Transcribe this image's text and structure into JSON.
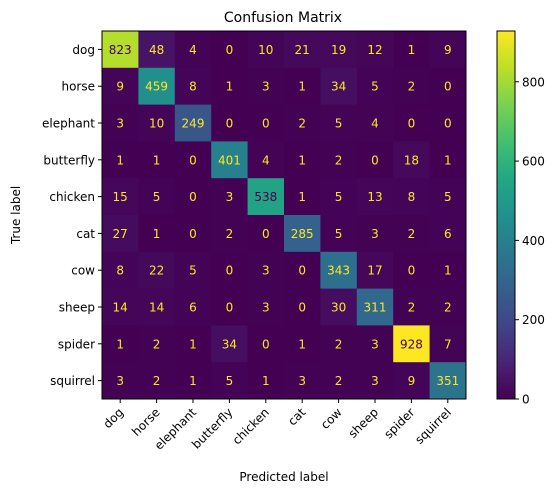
{
  "chart_data": {
    "type": "heatmap",
    "title": "Confusion Matrix",
    "xlabel": "Predicted label",
    "ylabel": "True label",
    "x_categories": [
      "dog",
      "horse",
      "elephant",
      "butterfly",
      "chicken",
      "cat",
      "cow",
      "sheep",
      "spider",
      "squirrel"
    ],
    "y_categories": [
      "dog",
      "horse",
      "elephant",
      "butterfly",
      "chicken",
      "cat",
      "cow",
      "sheep",
      "spider",
      "squirrel"
    ],
    "values": [
      [
        823,
        48,
        4,
        0,
        10,
        21,
        19,
        12,
        1,
        9
      ],
      [
        9,
        459,
        8,
        1,
        3,
        1,
        34,
        5,
        2,
        0
      ],
      [
        3,
        10,
        249,
        0,
        0,
        2,
        5,
        4,
        0,
        0
      ],
      [
        1,
        1,
        0,
        401,
        4,
        1,
        2,
        0,
        18,
        1
      ],
      [
        15,
        5,
        0,
        3,
        538,
        1,
        5,
        13,
        8,
        5
      ],
      [
        27,
        1,
        0,
        2,
        0,
        285,
        5,
        3,
        2,
        6
      ],
      [
        8,
        22,
        5,
        0,
        3,
        0,
        343,
        17,
        0,
        1
      ],
      [
        14,
        14,
        6,
        0,
        3,
        0,
        30,
        311,
        2,
        2
      ],
      [
        1,
        2,
        1,
        34,
        0,
        1,
        2,
        3,
        928,
        7
      ],
      [
        3,
        2,
        1,
        5,
        1,
        3,
        2,
        3,
        9,
        351
      ]
    ],
    "colormap": "viridis",
    "value_range": [
      0,
      928
    ],
    "colorbar_ticks": [
      0,
      200,
      400,
      600,
      800
    ],
    "x_tick_rotation_deg": 45,
    "grid": false
  }
}
